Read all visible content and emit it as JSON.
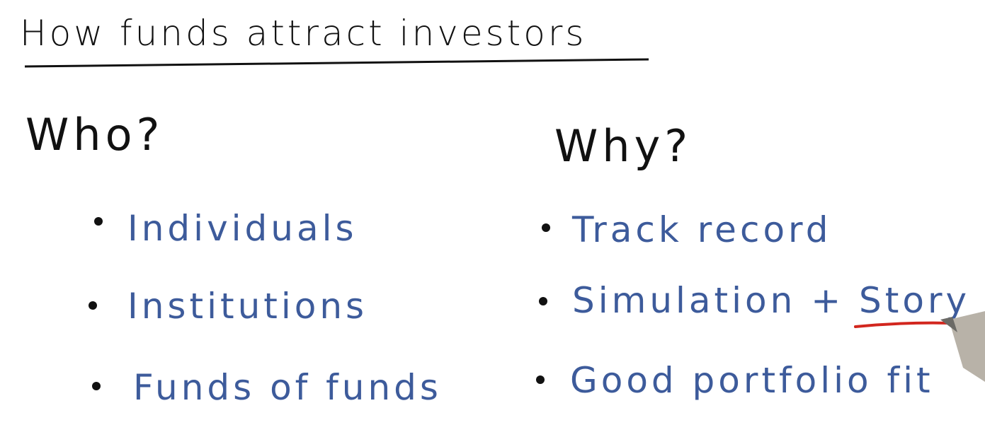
{
  "header": {
    "title": "How funds attract investors"
  },
  "columns": [
    {
      "heading": "Who?",
      "items": [
        "Individuals",
        "Institutions",
        "Funds of funds"
      ]
    },
    {
      "heading": "Why?",
      "items": [
        "Track record",
        "Simulation + Story",
        "Good portfolio fit"
      ]
    }
  ]
}
